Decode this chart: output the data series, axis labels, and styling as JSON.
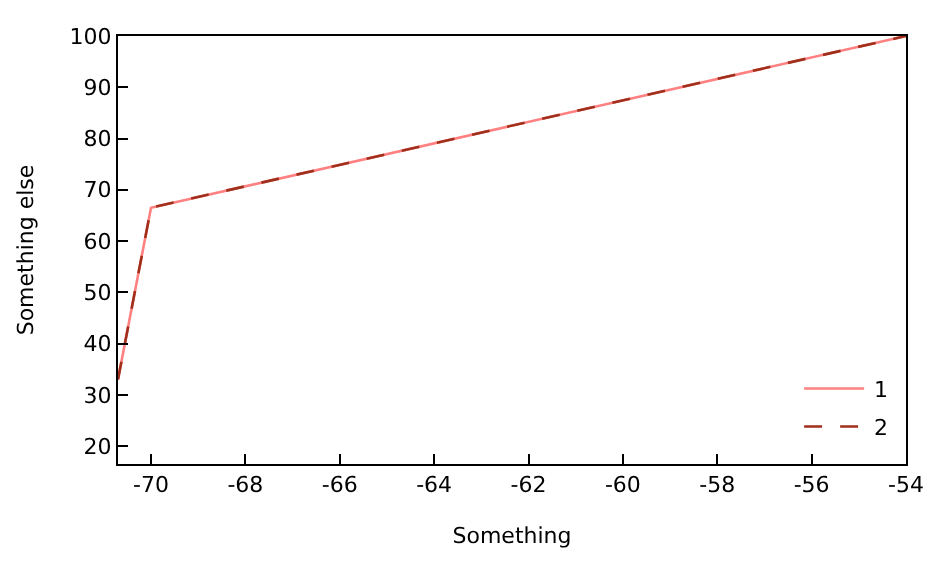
{
  "chart_data": {
    "type": "line",
    "xlabel": "Something",
    "ylabel": "Something else",
    "x": [
      -70.7,
      -70,
      -54
    ],
    "series": [
      {
        "name": "1",
        "color": "#ff8080",
        "values": [
          33,
          66.5,
          100
        ],
        "line_style": "solid"
      },
      {
        "name": "2",
        "color": "#a0301c",
        "values": [
          33,
          66.5,
          100
        ],
        "line_style": "dashed"
      }
    ],
    "xlim": [
      -70.7,
      -54
    ],
    "xticks": [
      -70,
      -68,
      -66,
      -64,
      -62,
      -60,
      -58,
      -56,
      -54
    ],
    "ylim": [
      16.5,
      100
    ],
    "yticks": [
      20,
      30,
      40,
      50,
      60,
      70,
      80,
      90,
      100
    ],
    "grid": false,
    "legend": "bottom right",
    "marker": "none"
  }
}
